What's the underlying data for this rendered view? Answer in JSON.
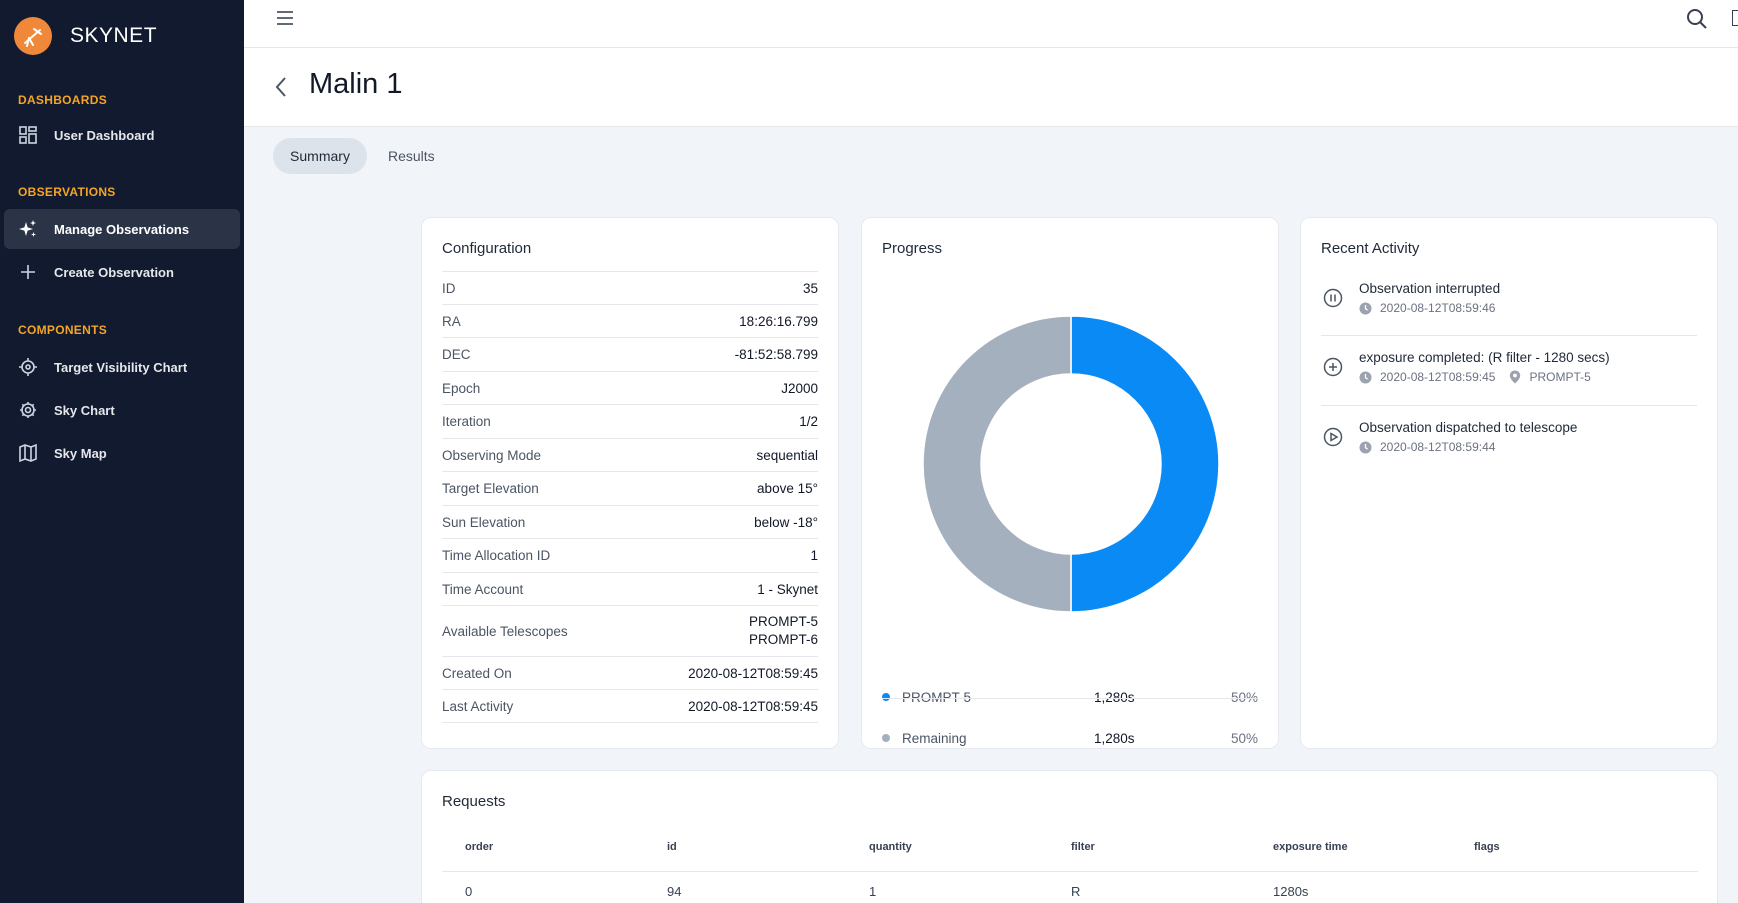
{
  "app": {
    "brand": "SKYNET"
  },
  "sidebar": {
    "sections": [
      {
        "title": "DASHBOARDS",
        "items": [
          {
            "label": "User Dashboard",
            "icon": "dashboard-icon"
          }
        ]
      },
      {
        "title": "OBSERVATIONS",
        "items": [
          {
            "label": "Manage Observations",
            "icon": "sparkles-icon",
            "active": true
          },
          {
            "label": "Create Observation",
            "icon": "plus-icon"
          }
        ]
      },
      {
        "title": "COMPONENTS",
        "items": [
          {
            "label": "Target Visibility Chart",
            "icon": "target-icon"
          },
          {
            "label": "Sky Chart",
            "icon": "sky-chart-icon"
          },
          {
            "label": "Sky Map",
            "icon": "map-icon"
          }
        ]
      }
    ]
  },
  "page": {
    "title": "Malin 1"
  },
  "tabs": [
    {
      "label": "Summary",
      "active": true
    },
    {
      "label": "Results",
      "active": false
    }
  ],
  "configuration": {
    "title": "Configuration",
    "rows": [
      {
        "key": "ID",
        "value": "35"
      },
      {
        "key": "RA",
        "value": "18:26:16.799"
      },
      {
        "key": "DEC",
        "value": "-81:52:58.799"
      },
      {
        "key": "Epoch",
        "value": "J2000"
      },
      {
        "key": "Iteration",
        "value": "1/2"
      },
      {
        "key": "Observing Mode",
        "value": "sequential"
      },
      {
        "key": "Target Elevation",
        "value": "above 15°"
      },
      {
        "key": "Sun Elevation",
        "value": "below -18°"
      },
      {
        "key": "Time Allocation ID",
        "value": "1"
      },
      {
        "key": "Time Account",
        "value": "1 - Skynet"
      },
      {
        "key": "Available Telescopes",
        "value": "PROMPT-5",
        "value2": "PROMPT-6"
      },
      {
        "key": "Created On",
        "value": "2020-08-12T08:59:45"
      },
      {
        "key": "Last Activity",
        "value": "2020-08-12T08:59:45"
      }
    ]
  },
  "progress": {
    "title": "Progress",
    "items": [
      {
        "label": "PROMPT-5",
        "time": "1,280s",
        "percent": "50%",
        "fraction": 0.5,
        "color": "#0a8af5"
      },
      {
        "label": "Remaining",
        "time": "1,280s",
        "percent": "50%",
        "fraction": 0.5,
        "color": "#a5b0bf"
      }
    ]
  },
  "activity": {
    "title": "Recent Activity",
    "items": [
      {
        "title": "Observation interrupted",
        "time": "2020-08-12T08:59:46",
        "icon": "pause-circle-icon"
      },
      {
        "title": "exposure completed: (R filter - 1280 secs)",
        "time": "2020-08-12T08:59:45",
        "location": "PROMPT-5",
        "icon": "plus-circle-icon"
      },
      {
        "title": "Observation dispatched to telescope",
        "time": "2020-08-12T08:59:44",
        "icon": "play-circle-icon"
      }
    ]
  },
  "requests": {
    "title": "Requests",
    "columns": [
      "order",
      "id",
      "quantity",
      "filter",
      "exposure time",
      "flags"
    ],
    "rows": [
      [
        "0",
        "94",
        "1",
        "R",
        "1280s",
        ""
      ]
    ]
  }
}
